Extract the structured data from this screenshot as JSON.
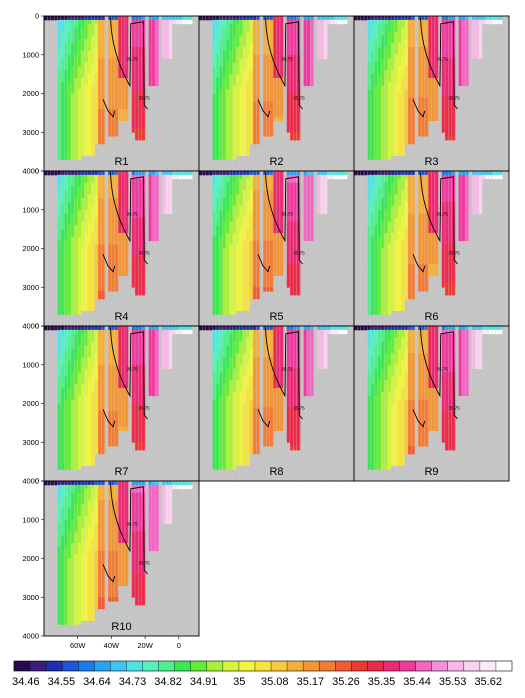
{
  "chart_data": {
    "type": "heatmap",
    "layout": "small-multiples grid (4 rows x 3 columns, 10 panels)",
    "y_axis": {
      "ticks": [
        0,
        1000,
        2000,
        3000,
        4000
      ],
      "tick_labels": [
        "0",
        "1000",
        "2000",
        "3000",
        "4000"
      ],
      "inverted": true,
      "ylim": [
        0,
        4000
      ]
    },
    "x_axis": {
      "ticks": [
        -60,
        -40,
        -20,
        0
      ],
      "tick_labels": [
        "60W",
        "40W",
        "20W",
        "0"
      ],
      "xlim": [
        -80,
        12
      ]
    },
    "missing_value_color": "#c4c4c4",
    "contour_label": "35.75",
    "panels": [
      {
        "label": "R1"
      },
      {
        "label": "R2"
      },
      {
        "label": "R3"
      },
      {
        "label": "R4"
      },
      {
        "label": "R5"
      },
      {
        "label": "R6"
      },
      {
        "label": "R7"
      },
      {
        "label": "R8"
      },
      {
        "label": "R9"
      },
      {
        "label": "R10"
      }
    ],
    "colorbar": {
      "tick_labels": [
        "34.46",
        "34.55",
        "34.64",
        "34.73",
        "34.82",
        "34.91",
        "35",
        "35.08",
        "35.17",
        "35.26",
        "35.35",
        "35.44",
        "35.53",
        "35.62"
      ],
      "colors": [
        "#2a0a4e",
        "#3b1d7a",
        "#1f2fb0",
        "#1f55d8",
        "#1c7be8",
        "#2aa4ee",
        "#3ec6f0",
        "#4fe3e8",
        "#55f0c0",
        "#4df08a",
        "#3ae854",
        "#62ec3a",
        "#a8f03a",
        "#d6f53c",
        "#f2f53e",
        "#f7e23e",
        "#f7c93c",
        "#f5ae3a",
        "#f39638",
        "#f27c36",
        "#f05a34",
        "#ee3a34",
        "#ec2a4a",
        "#ec2a74",
        "#ee3a9c",
        "#f266c4",
        "#f590da",
        "#f7b8e6",
        "#fad4ef",
        "#fdeaf7",
        "#ffffff"
      ]
    }
  }
}
